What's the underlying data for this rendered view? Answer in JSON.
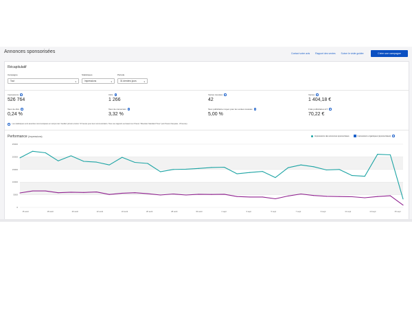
{
  "header": {
    "title": "Annonces sponsorisées",
    "nav": [
      "Contact votre avis",
      "Rapport des ventes",
      "Suivre le visite guidée"
    ],
    "cta": "Créer une campagne"
  },
  "recap": {
    "title": "Récapitulatif",
    "filters": [
      {
        "label": "Campagne",
        "value": "Tout"
      },
      {
        "label": "Statistiques",
        "value": "Impressions"
      },
      {
        "label": "Période",
        "value": "31 derniers jours"
      }
    ],
    "metrics": [
      {
        "label": "Impressions",
        "value": "526 764"
      },
      {
        "label": "Clics",
        "value": "1 266"
      },
      {
        "label": "Ventes réussies",
        "value": "42"
      },
      {
        "label": "Ventes",
        "value": "1 404,18 €"
      },
      {
        "label": "Taux de clics",
        "value": "0,24 %"
      },
      {
        "label": "Taux de conversion",
        "value": "3,32 %"
      },
      {
        "label": "Taux publicitaire moyen pour les ventes réussies",
        "value": "5,00 %"
      },
      {
        "label": "Frais publicitaires HT",
        "value": "70,22 €"
      }
    ],
    "note": "Les statistiques sont assorties communiquées en temps réel. Veuillez prévoir environ 72 heures pour leur communication. Tous ces rapports se basent sur l'heure \"Mountain Standard Time\" (soit l'heure française - 8 heures)."
  },
  "performance": {
    "title": "Performance",
    "subtitle": "(Impressions)",
    "legend": [
      "Impressions des annonces sponsorisées",
      "Impressions organiques (sponsorisées)"
    ]
  },
  "colors": {
    "series1": "#1aa3a3",
    "series2": "#8e1f8e",
    "accent": "#0a4fc2"
  },
  "chart_data": {
    "type": "line",
    "x": [
      "15 août",
      "16 août",
      "17 août",
      "18 août",
      "19 août",
      "20 août",
      "21 août",
      "22 août",
      "23 août",
      "24 août",
      "25 août",
      "26 août",
      "27 août",
      "28 août",
      "29 août",
      "30 août",
      "31 août",
      "1 sept",
      "2 sept",
      "3 sept",
      "4 sept",
      "5 sept",
      "6 sept",
      "7 sept",
      "8 sept",
      "9 sept",
      "10 sept",
      "11 sept",
      "12 sept",
      "13 sept",
      "14 sept"
    ],
    "xtick_labels": [
      "15 août",
      "18 août",
      "20 août",
      "22 août",
      "24 août",
      "26 août",
      "28 août",
      "30 août",
      "1 sept",
      "3 sept",
      "5 sept",
      "7 sept",
      "9 sept",
      "11 sept",
      "13 sept",
      "15 sept"
    ],
    "series": [
      {
        "name": "Impressions des annonces sponsorisées",
        "values": [
          19600,
          22200,
          21600,
          18400,
          20400,
          18200,
          17900,
          16800,
          19800,
          17800,
          17400,
          14100,
          15000,
          15100,
          15400,
          15800,
          15900,
          13300,
          13800,
          14200,
          11800,
          15700,
          16800,
          16100,
          14800,
          15000,
          12600,
          12300,
          21000,
          20800,
          3300
        ]
      },
      {
        "name": "Impressions organiques (sponsorisées)",
        "values": [
          5700,
          6500,
          6500,
          5800,
          6000,
          5900,
          6100,
          5100,
          5600,
          5800,
          5400,
          4900,
          5300,
          4900,
          5200,
          5100,
          5200,
          4300,
          4100,
          4100,
          3400,
          4500,
          5300,
          4700,
          4400,
          4300,
          4200,
          3800,
          4300,
          4600,
          900
        ]
      }
    ],
    "yticks": [
      0,
      5000,
      10000,
      15000,
      20000,
      25000
    ],
    "ytick_labels": [
      "0",
      "5000",
      "10000",
      "15000",
      "20000",
      "25000"
    ],
    "ylim": [
      0,
      25000
    ],
    "grid": true,
    "legend_position": "top-right"
  }
}
